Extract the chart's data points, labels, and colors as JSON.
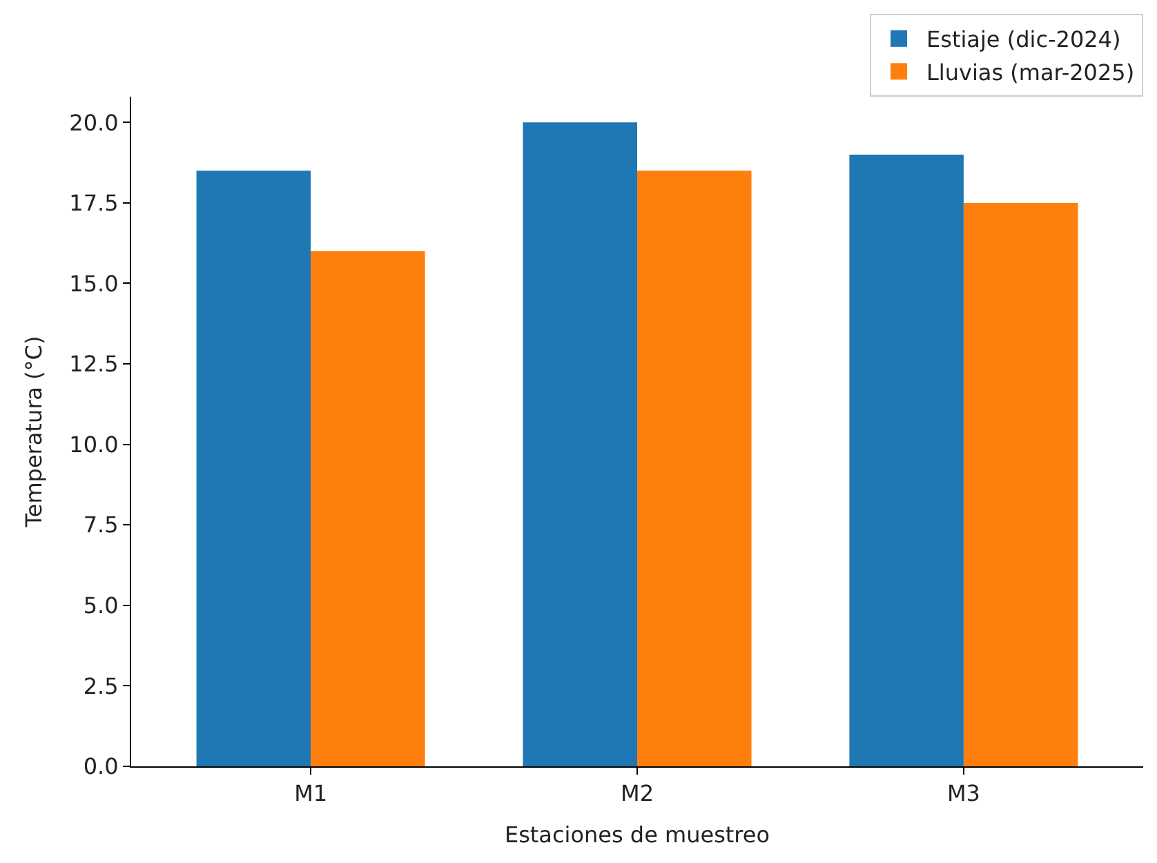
{
  "chart_data": {
    "type": "bar",
    "xlabel": "Estaciones de muestreo",
    "ylabel": "Temperatura (°C)",
    "categories": [
      "M1",
      "M2",
      "M3"
    ],
    "series": [
      {
        "name": "Estiaje (dic-2024)",
        "color": "#1f77b4",
        "values": [
          18.5,
          20.0,
          19.0
        ]
      },
      {
        "name": "Lluvias (mar-2025)",
        "color": "#ff7f0e",
        "values": [
          16.0,
          18.5,
          17.5
        ]
      }
    ],
    "ylim": [
      0,
      20.8
    ],
    "yticks": [
      {
        "value": 0,
        "label": "0.0"
      },
      {
        "value": 2.5,
        "label": "2.5"
      },
      {
        "value": 5,
        "label": "5.0"
      },
      {
        "value": 7.5,
        "label": "7.5"
      },
      {
        "value": 10,
        "label": "10.0"
      },
      {
        "value": 12.5,
        "label": "12.5"
      },
      {
        "value": 15,
        "label": "15.0"
      },
      {
        "value": 17.5,
        "label": "17.5"
      },
      {
        "value": 20,
        "label": "20.0"
      }
    ],
    "legend": "top right"
  }
}
